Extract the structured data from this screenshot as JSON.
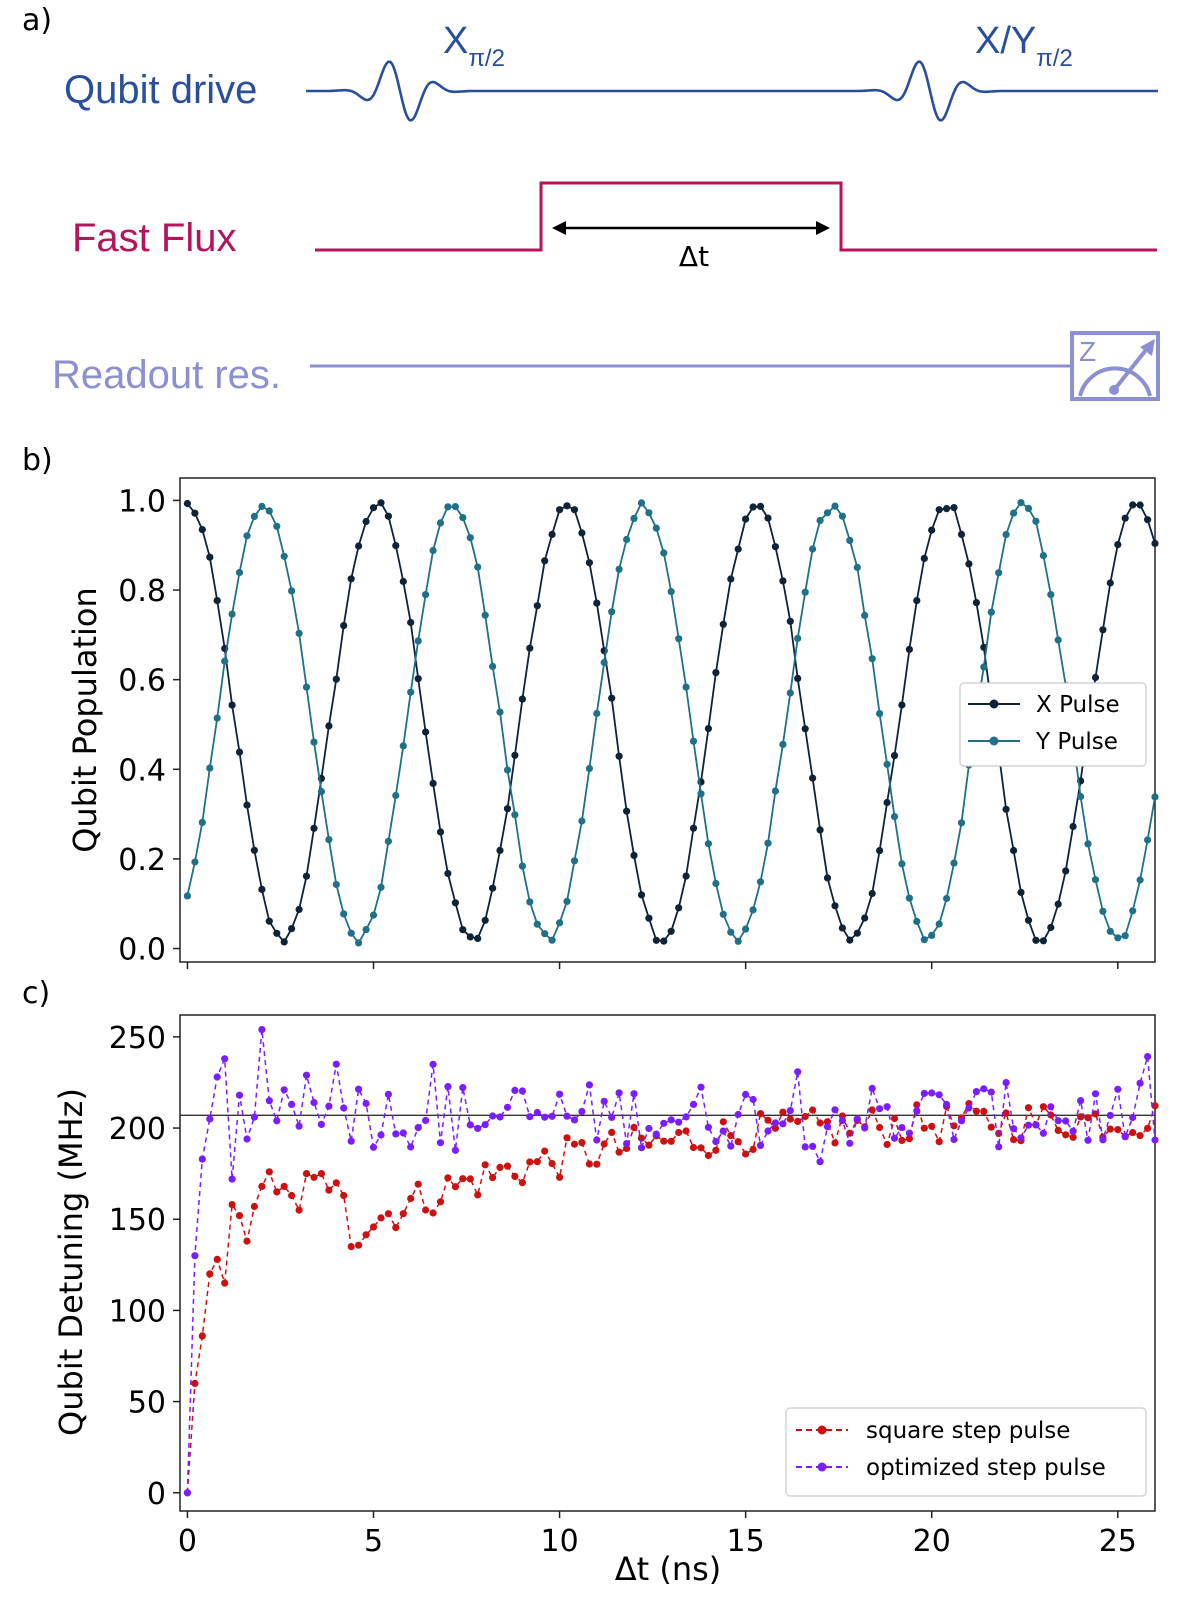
{
  "panel_a": {
    "label": "a)",
    "rows": {
      "qubit_drive": {
        "label": "Qubit drive",
        "color": "#2a4f9a"
      },
      "fast_flux": {
        "label": "Fast Flux",
        "color": "#b5145a"
      },
      "readout": {
        "label": "Readout res.",
        "color": "#8c8fd0"
      }
    },
    "pulse1": {
      "base": "X",
      "sub": "π/2"
    },
    "pulse2": {
      "base": "X/Y",
      "sub": "π/2"
    },
    "delta_label": "Δt",
    "meter_icon": "measurement-meter-icon",
    "meter_letter": "Z"
  },
  "chart_data": [
    {
      "panel_label": "b)",
      "type": "line",
      "ylabel": "Qubit Population",
      "xlim": [
        -0.2,
        26.0
      ],
      "ylim": [
        -0.03,
        1.05
      ],
      "yticks": [
        "0.0",
        "0.2",
        "0.4",
        "0.6",
        "0.8",
        "1.0"
      ],
      "ytick_values": [
        0.0,
        0.2,
        0.4,
        0.6,
        0.8,
        1.0
      ],
      "x_tick_values": [
        0,
        5,
        10,
        15,
        20,
        25
      ],
      "legend_position": "center-right",
      "x_step": 0.2,
      "n_points": 131,
      "series": [
        {
          "name": "X Pulse",
          "color": "#0e2238",
          "model": "0.505+0.485*cos(2*pi*x/5.1)"
        },
        {
          "name": "Y Pulse",
          "color": "#1f7088",
          "model": "0.505+0.485*cos(2*pi*(x-2.05)/5.1)"
        }
      ]
    },
    {
      "panel_label": "c)",
      "type": "line",
      "xlabel": "Δt (ns)",
      "ylabel": "Qubit Detuning (MHz)",
      "xlim": [
        -0.2,
        26.0
      ],
      "ylim": [
        -10,
        262
      ],
      "yticks": [
        "0",
        "50",
        "100",
        "150",
        "200",
        "250"
      ],
      "ytick_values": [
        0,
        50,
        100,
        150,
        200,
        250
      ],
      "xticks": [
        "0",
        "5",
        "10",
        "15",
        "20",
        "25"
      ],
      "x_tick_values": [
        0,
        5,
        10,
        15,
        20,
        25
      ],
      "reference_line": 207,
      "legend_position": "lower-right",
      "x_step": 0.2,
      "n_points": 131,
      "series": [
        {
          "name": "square step pulse",
          "color": "#cc1111",
          "style": "dashed",
          "model": "207*(1-0.32*exp(-x/0.6)-0.68*exp(-x/5.5)) + noise(±12)",
          "first_values": [
            0,
            60,
            86,
            120,
            128,
            115,
            158,
            152,
            138,
            157,
            168,
            176,
            165,
            168,
            163,
            155,
            175,
            173,
            175,
            166,
            170,
            163
          ]
        },
        {
          "name": "optimized step pulse",
          "color": "#7a1dff",
          "style": "dashed",
          "model": "207 + noise(±25) after rise",
          "first_values": [
            0,
            130,
            183,
            205,
            228,
            238,
            172,
            218,
            194,
            206,
            254,
            215,
            204,
            221,
            213,
            201,
            229,
            214,
            202,
            212,
            235,
            211
          ]
        }
      ]
    }
  ]
}
